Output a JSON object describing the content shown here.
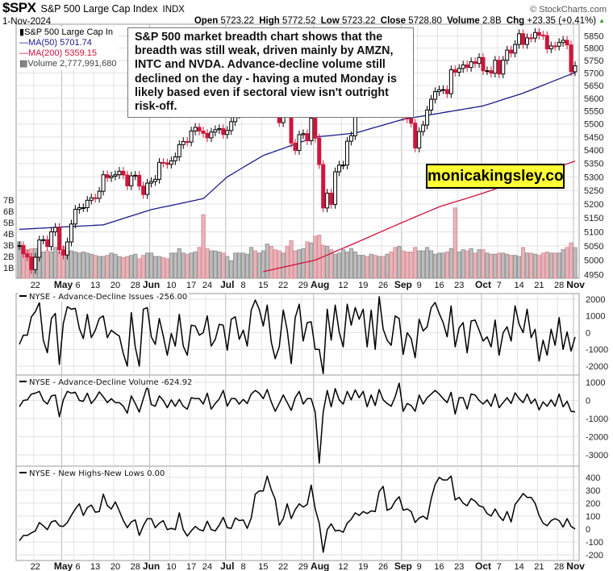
{
  "header": {
    "symbol": "$SPX",
    "name": "S&P 500 Large Cap Index",
    "exchange": "INDX",
    "date": "1-Nov-2024",
    "brand": "© StockCharts.com",
    "quote": {
      "open_label": "Open",
      "open": "5723.22",
      "high_label": "High",
      "high": "5772.52",
      "low_label": "Low",
      "low": "5723.22",
      "close_label": "Close",
      "close": "5728.80",
      "volume_label": "Volume",
      "volume": "2.8B",
      "chg_label": "Chg",
      "chg": "+23.35 (+0.41%)",
      "chg_direction": "up"
    }
  },
  "legend": {
    "price": "S&P 500 Large Cap In",
    "ma50": "MA(50) 5701.74",
    "ma200": "MA(200) 5359.15",
    "volume": "Volume 2,777,991,680"
  },
  "annotation": "S&P 500 market breadth chart shows that the breadth was still weak, driven mainly by AMZN, INTC and NVDA. Advance-decline volume still declined on the day - having a muted Monday is likely based even if sectoral view isn't outright risk-off.",
  "watermark": "monicakingsley.co",
  "colors": {
    "up_candle": "#000000",
    "down_candle": "#d2143a",
    "ma50": "#1a1a8c",
    "ma200": "#d0103a",
    "volume_up": "#bdbdbd",
    "volume_down": "#e8b4b9",
    "indicator_line": "#000000",
    "chg_up": "#2a9d2a",
    "watermark_bg": "#ffff33"
  },
  "chart_data": [
    {
      "type": "candlestick",
      "panel": "price",
      "yscale": "log",
      "ylim": [
        4937,
        5898
      ],
      "grid": true,
      "y_ticks": [
        "4950",
        "5000",
        "5050",
        "5100",
        "5150",
        "5200",
        "5250",
        "5300",
        "5350",
        "5400",
        "5450",
        "5500",
        "5550",
        "5600",
        "5650",
        "5700",
        "5750",
        "5800",
        "5850"
      ],
      "volume_ticks": [
        "1B",
        "2B",
        "3B",
        "4B",
        "5B",
        "6B",
        "7B"
      ],
      "x_ticks": [
        {
          "date": "2024-04-22",
          "label": "22",
          "month": false
        },
        {
          "date": "2024-05-01",
          "label": "May",
          "month": true
        },
        {
          "date": "2024-05-06",
          "label": "6",
          "month": false
        },
        {
          "date": "2024-05-13",
          "label": "13",
          "month": false
        },
        {
          "date": "2024-05-20",
          "label": "20",
          "month": false
        },
        {
          "date": "2024-05-28",
          "label": "28",
          "month": false
        },
        {
          "date": "2024-06-03",
          "label": "Jun",
          "month": true
        },
        {
          "date": "2024-06-10",
          "label": "10",
          "month": false
        },
        {
          "date": "2024-06-17",
          "label": "17",
          "month": false
        },
        {
          "date": "2024-06-24",
          "label": "24",
          "month": false
        },
        {
          "date": "2024-07-01",
          "label": "Jul",
          "month": true
        },
        {
          "date": "2024-07-08",
          "label": "8",
          "month": false
        },
        {
          "date": "2024-07-15",
          "label": "15",
          "month": false
        },
        {
          "date": "2024-07-22",
          "label": "22",
          "month": false
        },
        {
          "date": "2024-07-29",
          "label": "29",
          "month": false
        },
        {
          "date": "2024-08-01",
          "label": "Aug",
          "month": true
        },
        {
          "date": "2024-08-12",
          "label": "12",
          "month": false
        },
        {
          "date": "2024-08-19",
          "label": "19",
          "month": false
        },
        {
          "date": "2024-08-26",
          "label": "26",
          "month": false
        },
        {
          "date": "2024-09-03",
          "label": "Sep",
          "month": true
        },
        {
          "date": "2024-09-09",
          "label": "9",
          "month": false
        },
        {
          "date": "2024-09-16",
          "label": "16",
          "month": false
        },
        {
          "date": "2024-09-23",
          "label": "23",
          "month": false
        },
        {
          "date": "2024-10-01",
          "label": "Oct",
          "month": true
        },
        {
          "date": "2024-10-07",
          "label": "7",
          "month": false
        },
        {
          "date": "2024-10-14",
          "label": "14",
          "month": false
        },
        {
          "date": "2024-10-21",
          "label": "21",
          "month": false
        },
        {
          "date": "2024-10-28",
          "label": "28",
          "month": false
        },
        {
          "date": "2024-11-01",
          "label": "Nov",
          "month": true
        }
      ],
      "dates": [
        "2024-04-16",
        "2024-04-17",
        "2024-04-18",
        "2024-04-19",
        "2024-04-22",
        "2024-04-23",
        "2024-04-24",
        "2024-04-25",
        "2024-04-26",
        "2024-04-29",
        "2024-04-30",
        "2024-05-01",
        "2024-05-02",
        "2024-05-03",
        "2024-05-06",
        "2024-05-07",
        "2024-05-08",
        "2024-05-09",
        "2024-05-10",
        "2024-05-13",
        "2024-05-14",
        "2024-05-15",
        "2024-05-16",
        "2024-05-17",
        "2024-05-20",
        "2024-05-21",
        "2024-05-22",
        "2024-05-23",
        "2024-05-24",
        "2024-05-28",
        "2024-05-29",
        "2024-05-30",
        "2024-05-31",
        "2024-06-03",
        "2024-06-04",
        "2024-06-05",
        "2024-06-06",
        "2024-06-07",
        "2024-06-10",
        "2024-06-11",
        "2024-06-12",
        "2024-06-13",
        "2024-06-14",
        "2024-06-17",
        "2024-06-18",
        "2024-06-20",
        "2024-06-21",
        "2024-06-24",
        "2024-06-25",
        "2024-06-26",
        "2024-06-27",
        "2024-06-28",
        "2024-07-01",
        "2024-07-02",
        "2024-07-03",
        "2024-07-05",
        "2024-07-08",
        "2024-07-09",
        "2024-07-10",
        "2024-07-11",
        "2024-07-12",
        "2024-07-15",
        "2024-07-16",
        "2024-07-17",
        "2024-07-18",
        "2024-07-19",
        "2024-07-22",
        "2024-07-23",
        "2024-07-24",
        "2024-07-25",
        "2024-07-26",
        "2024-07-29",
        "2024-07-30",
        "2024-07-31",
        "2024-08-01",
        "2024-08-02",
        "2024-08-05",
        "2024-08-06",
        "2024-08-07",
        "2024-08-08",
        "2024-08-09",
        "2024-08-12",
        "2024-08-13",
        "2024-08-14",
        "2024-08-15",
        "2024-08-16",
        "2024-08-19",
        "2024-08-20",
        "2024-08-21",
        "2024-08-22",
        "2024-08-23",
        "2024-08-26",
        "2024-08-27",
        "2024-08-28",
        "2024-08-29",
        "2024-08-30",
        "2024-09-03",
        "2024-09-04",
        "2024-09-05",
        "2024-09-06",
        "2024-09-09",
        "2024-09-10",
        "2024-09-11",
        "2024-09-12",
        "2024-09-13",
        "2024-09-16",
        "2024-09-17",
        "2024-09-18",
        "2024-09-19",
        "2024-09-20",
        "2024-09-23",
        "2024-09-24",
        "2024-09-25",
        "2024-09-26",
        "2024-09-27",
        "2024-09-30",
        "2024-10-01",
        "2024-10-02",
        "2024-10-03",
        "2024-10-04",
        "2024-10-07",
        "2024-10-08",
        "2024-10-09",
        "2024-10-10",
        "2024-10-11",
        "2024-10-14",
        "2024-10-15",
        "2024-10-16",
        "2024-10-17",
        "2024-10-18",
        "2024-10-21",
        "2024-10-22",
        "2024-10-23",
        "2024-10-24",
        "2024-10-25",
        "2024-10-28",
        "2024-10-29",
        "2024-10-30",
        "2024-10-31",
        "2024-11-01"
      ],
      "close": [
        5051,
        5022,
        5011,
        4967,
        5010,
        5071,
        5072,
        5048,
        5100,
        5116,
        5036,
        5018,
        5064,
        5128,
        5181,
        5187,
        5187,
        5214,
        5223,
        5221,
        5247,
        5308,
        5297,
        5303,
        5308,
        5321,
        5307,
        5267,
        5304,
        5306,
        5266,
        5235,
        5277,
        5283,
        5291,
        5354,
        5352,
        5347,
        5360,
        5375,
        5421,
        5433,
        5431,
        5473,
        5487,
        5473,
        5464,
        5447,
        5469,
        5478,
        5482,
        5460,
        5475,
        5509,
        5537,
        5567,
        5572,
        5577,
        5633,
        5584,
        5615,
        5631,
        5667,
        5588,
        5544,
        5505,
        5564,
        5555,
        5427,
        5399,
        5459,
        5463,
        5436,
        5522,
        5446,
        5346,
        5186,
        5240,
        5199,
        5319,
        5344,
        5344,
        5434,
        5455,
        5543,
        5554,
        5608,
        5597,
        5620,
        5571,
        5634,
        5616,
        5625,
        5592,
        5591,
        5648,
        5528,
        5520,
        5503,
        5408,
        5471,
        5496,
        5554,
        5596,
        5626,
        5633,
        5634,
        5618,
        5713,
        5703,
        5718,
        5732,
        5722,
        5745,
        5738,
        5762,
        5709,
        5709,
        5699,
        5751,
        5696,
        5751,
        5792,
        5780,
        5815,
        5859,
        5815,
        5842,
        5841,
        5864,
        5853,
        5851,
        5797,
        5809,
        5808,
        5823,
        5832,
        5813,
        5705,
        5728.8
      ],
      "volume_billions": [
        3.3,
        3.0,
        2.6,
        2.7,
        2.7,
        2.1,
        2.4,
        2.5,
        2.4,
        2.8,
        2.4,
        2.9,
        2.5,
        2.5,
        2.4,
        2.3,
        2.4,
        2.3,
        2.2,
        2.1,
        2.0,
        2.0,
        2.1,
        2.3,
        2.2,
        2.0,
        1.9,
        2.0,
        2.1,
        2.2,
        1.8,
        2.1,
        2.3,
        2.3,
        2.0,
        2.0,
        1.9,
        1.8,
        2.3,
        2.3,
        2.7,
        2.3,
        2.2,
        2.3,
        2.4,
        2.8,
        5.7,
        2.7,
        2.5,
        2.5,
        2.4,
        2.3,
        2.0,
        1.6,
        2.3,
        2.3,
        2.3,
        2.2,
        2.8,
        2.5,
        2.3,
        2.5,
        3.1,
        2.9,
        2.6,
        2.5,
        2.3,
        2.9,
        3.4,
        2.5,
        2.6,
        2.7,
        3.3,
        3.2,
        3.8,
        3.9,
        3.0,
        2.9,
        2.6,
        2.2,
        2.3,
        2.6,
        2.4,
        2.7,
        2.4,
        2.1,
        2.1,
        2.0,
        2.2,
        2.1,
        2.0,
        2.0,
        2.2,
        2.4,
        2.8,
        2.9,
        2.5,
        2.4,
        2.4,
        2.8,
        2.5,
        2.5,
        2.8,
        2.5,
        2.2,
        2.3,
        2.3,
        2.4,
        2.7,
        6.3,
        2.4,
        2.6,
        2.5,
        2.7,
        2.3,
        2.6,
        2.6,
        2.3,
        2.2,
        2.2,
        2.3,
        2.3,
        2.2,
        2.1,
        2.1,
        2.0,
        2.8,
        2.3,
        2.3,
        2.2,
        2.1,
        2.3,
        2.4,
        2.3,
        2.3,
        2.3,
        2.6,
        2.8,
        3.2,
        2.78
      ],
      "ma50": [
        {
          "date": "2024-04-16",
          "value": 5109
        },
        {
          "date": "2024-05-15",
          "value": 5125
        },
        {
          "date": "2024-06-03",
          "value": 5180
        },
        {
          "date": "2024-06-21",
          "value": 5220
        },
        {
          "date": "2024-07-01",
          "value": 5300
        },
        {
          "date": "2024-07-15",
          "value": 5380
        },
        {
          "date": "2024-08-01",
          "value": 5450
        },
        {
          "date": "2024-08-15",
          "value": 5465
        },
        {
          "date": "2024-09-03",
          "value": 5518
        },
        {
          "date": "2024-10-01",
          "value": 5570
        },
        {
          "date": "2024-10-15",
          "value": 5620
        },
        {
          "date": "2024-11-01",
          "value": 5701.74
        }
      ],
      "ma200": [
        {
          "date": "2024-07-15",
          "value": 4960
        },
        {
          "date": "2024-08-01",
          "value": 5000
        },
        {
          "date": "2024-08-15",
          "value": 5060
        },
        {
          "date": "2024-09-03",
          "value": 5135
        },
        {
          "date": "2024-09-16",
          "value": 5190
        },
        {
          "date": "2024-10-01",
          "value": 5240
        },
        {
          "date": "2024-10-15",
          "value": 5290
        },
        {
          "date": "2024-11-01",
          "value": 5359.15
        }
      ]
    },
    {
      "type": "line",
      "panel": "ad-issues",
      "title": "NYSE - Advance-Decline Issues -256.00",
      "ylim": [
        -2530,
        2337
      ],
      "y_ticks": [
        "2000",
        "1000",
        "0",
        "-1000",
        "-2000"
      ],
      "values": [
        -700,
        -150,
        -150,
        950,
        1250,
        1800,
        -450,
        -1200,
        850,
        1150,
        -1900,
        550,
        1550,
        1400,
        1450,
        250,
        -350,
        1100,
        -300,
        150,
        850,
        1000,
        -300,
        150,
        -50,
        -200,
        -1250,
        -2000,
        1200,
        -850,
        -2000,
        1400,
        1500,
        -250,
        -700,
        850,
        -200,
        -1350,
        -50,
        -800,
        1100,
        -800,
        -1350,
        450,
        400,
        -150,
        0,
        1000,
        -800,
        -400,
        500,
        450,
        -1050,
        800,
        950,
        -400,
        150,
        -800,
        1350,
        1950,
        1400,
        400,
        1650,
        -550,
        -1550,
        -850,
        1350,
        150,
        -1850,
        900,
        1700,
        -500,
        600,
        650,
        -1000,
        -1000,
        -2450,
        1400,
        -450,
        1650,
        50,
        -850,
        1700,
        450,
        1500,
        800,
        1400,
        -850,
        1350,
        -1000,
        2150,
        200,
        -450,
        -750,
        1000,
        850,
        -1300,
        0,
        -350,
        -1500,
        800,
        100,
        350,
        1500,
        1800,
        1150,
        600,
        -250,
        1600,
        -850,
        300,
        600,
        -1200,
        700,
        750,
        150,
        -500,
        -250,
        -850,
        750,
        -1350,
        0,
        350,
        -500,
        1600,
        500,
        0,
        1400,
        -300,
        200,
        -1700,
        -450,
        -1350,
        200,
        -750,
        900,
        -1000,
        50,
        -1100,
        -256
      ]
    },
    {
      "type": "line",
      "panel": "ad-volume",
      "title": "NYSE - Advance-Decline Volume -624.92",
      "ylim": [
        -3620,
        1400
      ],
      "y_ticks": [
        "1000",
        "0",
        "-1000",
        "-2000",
        "-3000"
      ],
      "values": [
        -350,
        0,
        30,
        350,
        400,
        500,
        0,
        -200,
        250,
        300,
        -900,
        30,
        500,
        400,
        450,
        0,
        -50,
        400,
        -170,
        100,
        470,
        200,
        -120,
        100,
        -120,
        -120,
        -320,
        -700,
        250,
        -170,
        -640,
        100,
        800,
        -230,
        -320,
        250,
        0,
        -400,
        30,
        -320,
        60,
        -320,
        -480,
        150,
        100,
        100,
        -200,
        400,
        -480,
        -170,
        80,
        550,
        -320,
        100,
        100,
        -200,
        60,
        -170,
        350,
        550,
        400,
        100,
        600,
        -80,
        -600,
        -170,
        300,
        -120,
        -550,
        150,
        500,
        -200,
        100,
        100,
        -650,
        -3450,
        -650,
        550,
        -350,
        650,
        30,
        -200,
        500,
        30,
        580,
        150,
        500,
        -350,
        300,
        -280,
        600,
        30,
        -170,
        -320,
        200,
        950,
        -600,
        -170,
        -280,
        -600,
        300,
        -200,
        150,
        350,
        550,
        350,
        100,
        -120,
        450,
        -750,
        150,
        150,
        -480,
        350,
        300,
        0,
        -200,
        30,
        -320,
        350,
        -400,
        -120,
        150,
        -170,
        420,
        100,
        -120,
        350,
        -170,
        80,
        -520,
        -80,
        -320,
        30,
        -320,
        350,
        -350,
        -50,
        -600,
        -624.92
      ]
    },
    {
      "type": "line",
      "panel": "nh-nl",
      "title": "NYSE - New Highs-New Lows 0.00",
      "ylim": [
        -244,
        487
      ],
      "y_ticks": [
        "400",
        "300",
        "200",
        "100",
        "0",
        "-100",
        "-200"
      ],
      "values": [
        -90,
        -50,
        -50,
        -30,
        -15,
        50,
        25,
        -5,
        55,
        65,
        25,
        20,
        50,
        105,
        155,
        195,
        105,
        165,
        185,
        130,
        135,
        270,
        180,
        155,
        210,
        140,
        65,
        10,
        55,
        70,
        -50,
        25,
        80,
        80,
        10,
        45,
        65,
        -5,
        5,
        -5,
        125,
        -5,
        -55,
        -15,
        20,
        -5,
        -15,
        60,
        -5,
        -15,
        30,
        90,
        10,
        5,
        85,
        65,
        70,
        5,
        85,
        270,
        295,
        295,
        410,
        305,
        230,
        30,
        80,
        195,
        80,
        150,
        195,
        170,
        190,
        340,
        155,
        45,
        -180,
        -5,
        40,
        -15,
        -10,
        -25,
        45,
        75,
        125,
        105,
        135,
        120,
        140,
        135,
        290,
        330,
        145,
        160,
        215,
        250,
        145,
        155,
        135,
        50,
        85,
        100,
        75,
        235,
        345,
        400,
        380,
        380,
        410,
        225,
        245,
        200,
        180,
        235,
        215,
        180,
        170,
        120,
        100,
        155,
        100,
        65,
        135,
        55,
        190,
        230,
        275,
        245,
        245,
        200,
        105,
        45,
        25,
        65,
        80,
        65,
        15,
        80,
        20,
        0
      ]
    }
  ]
}
